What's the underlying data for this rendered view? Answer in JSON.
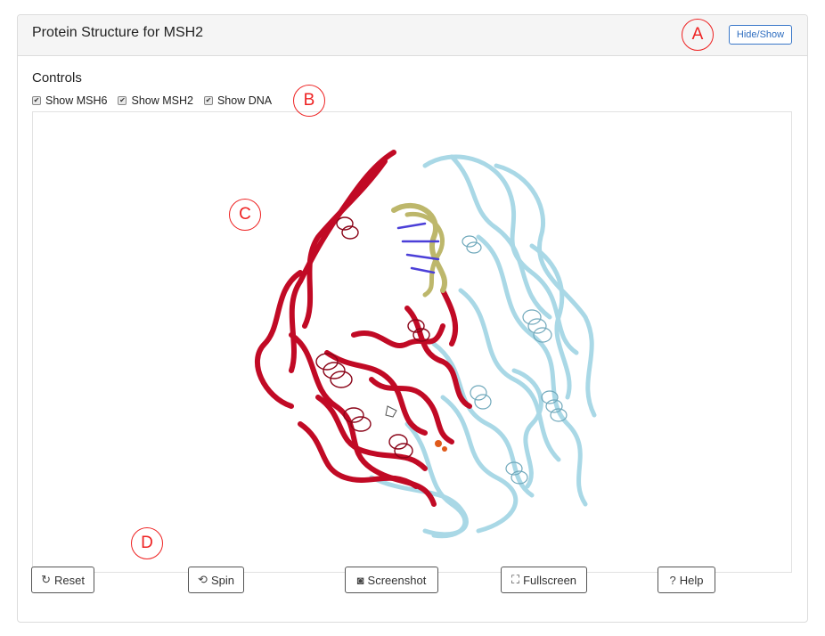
{
  "panel": {
    "title": "Protein Structure for MSH2",
    "hide_show_label": "Hide/Show"
  },
  "annotations": {
    "a": "A",
    "b": "B",
    "c": "C",
    "d": "D"
  },
  "controls": {
    "title": "Controls",
    "checkboxes": [
      {
        "label": "Show MSH6",
        "checked": true
      },
      {
        "label": "Show MSH2",
        "checked": true
      },
      {
        "label": "Show DNA",
        "checked": true
      }
    ]
  },
  "viewer": {
    "colors": {
      "msh6": "#c10a25",
      "msh2": "#a9d8e6",
      "dna_backbone": "#bdb76b",
      "dna_bases": "#4b3fd8",
      "ligand": "#e05a1a"
    }
  },
  "buttons": {
    "reset": "Reset",
    "spin": "Spin",
    "screenshot": "Screenshot",
    "fullscreen": "Fullscreen",
    "help": "Help"
  },
  "icons": {
    "reset": "reset-icon",
    "spin": "spin-icon",
    "screenshot": "camera-icon",
    "fullscreen": "fullscreen-icon",
    "help": "help-icon"
  }
}
